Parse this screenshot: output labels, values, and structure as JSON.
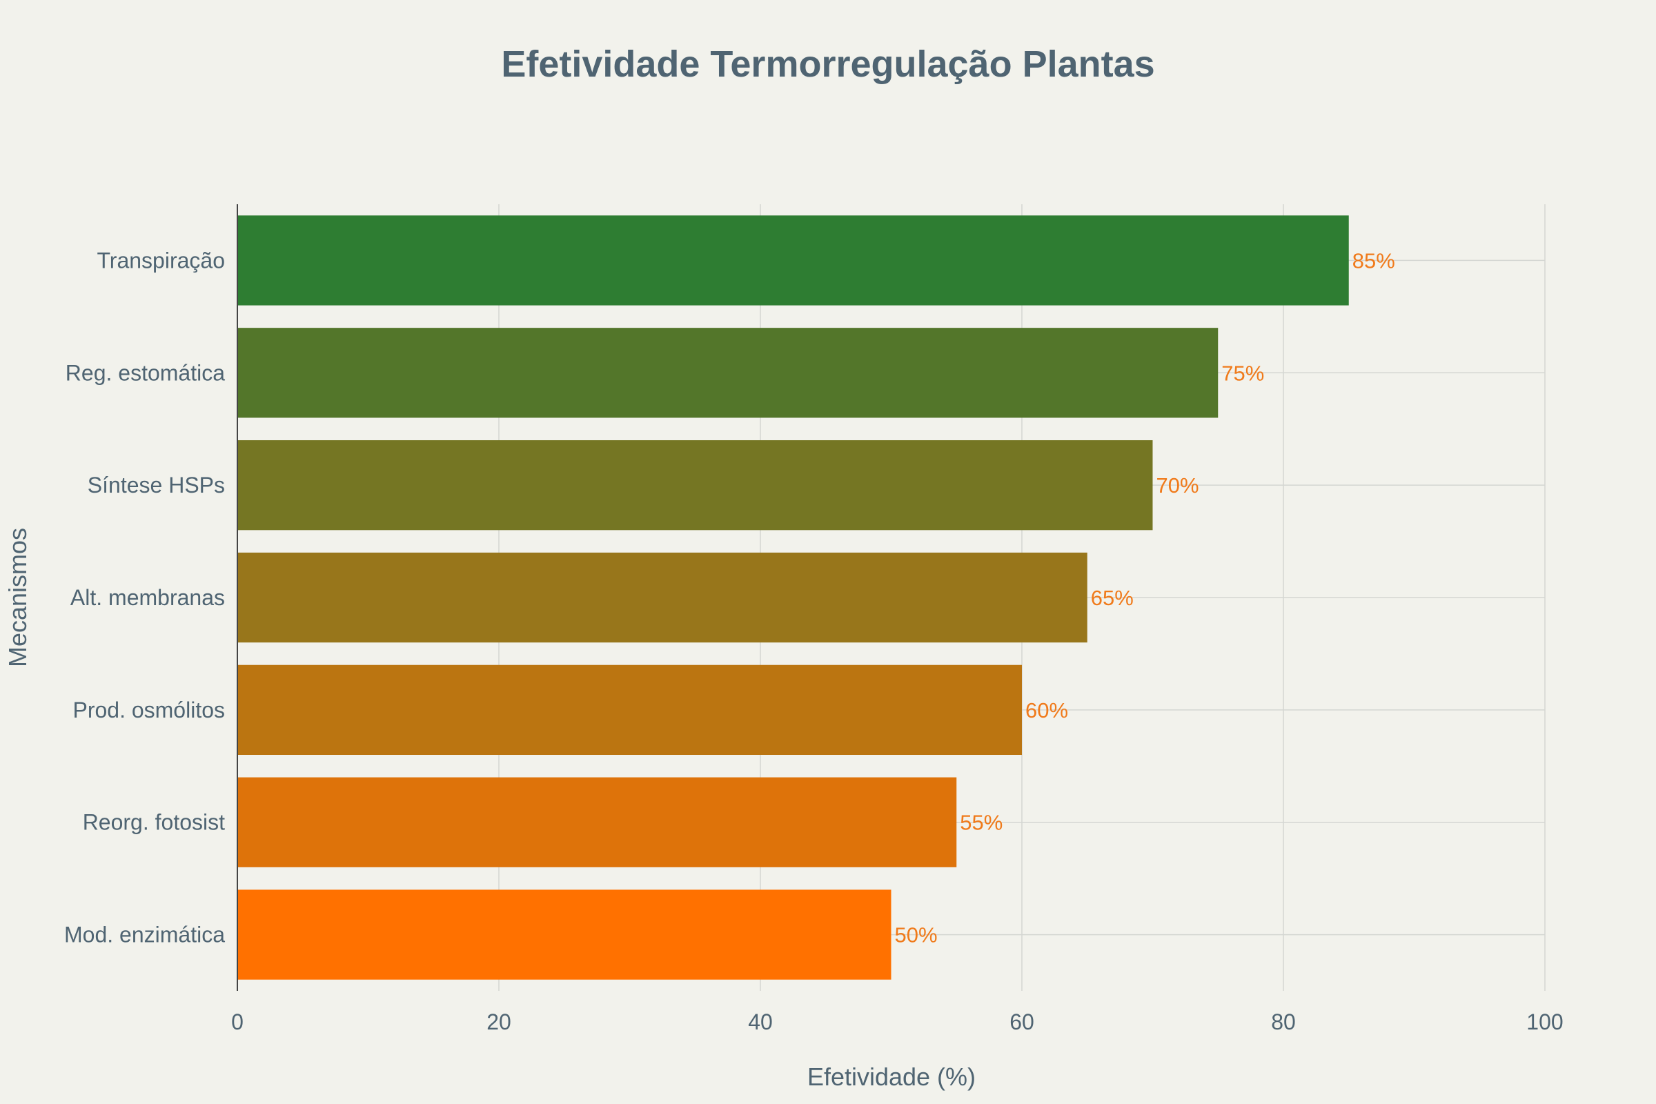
{
  "chart_data": {
    "type": "bar",
    "orientation": "horizontal",
    "title": "Efetividade Termorregulação Plantas",
    "xlabel": "Efetividade (%)",
    "ylabel": "Mecanismos",
    "categories": [
      "Transpiração",
      "Reg. estomática",
      "Síntese HSPs",
      "Alt. membranas",
      "Prod. osmólitos",
      "Reorg. fotosist",
      "Mod. enzimática"
    ],
    "values": [
      85,
      75,
      70,
      65,
      60,
      55,
      50
    ],
    "data_labels": [
      "85%",
      "75%",
      "70%",
      "65%",
      "60%",
      "55%",
      "50%"
    ],
    "bar_colors": [
      "#2e7d32",
      "#53762a",
      "#757623",
      "#98761b",
      "#bb7511",
      "#de730a",
      "#ff7100"
    ],
    "xlim": [
      0,
      100
    ],
    "xticks": [
      0,
      20,
      40,
      60,
      80,
      100
    ],
    "xtick_labels": [
      "0",
      "20",
      "40",
      "60",
      "80",
      "100"
    ],
    "grid": true,
    "legend": "none"
  },
  "colors": {
    "background": "#f2f2ec",
    "text": "#4f6472",
    "data_label": "#f07a1a",
    "grid": "#d4d6d2",
    "axis_line": "#444444"
  }
}
